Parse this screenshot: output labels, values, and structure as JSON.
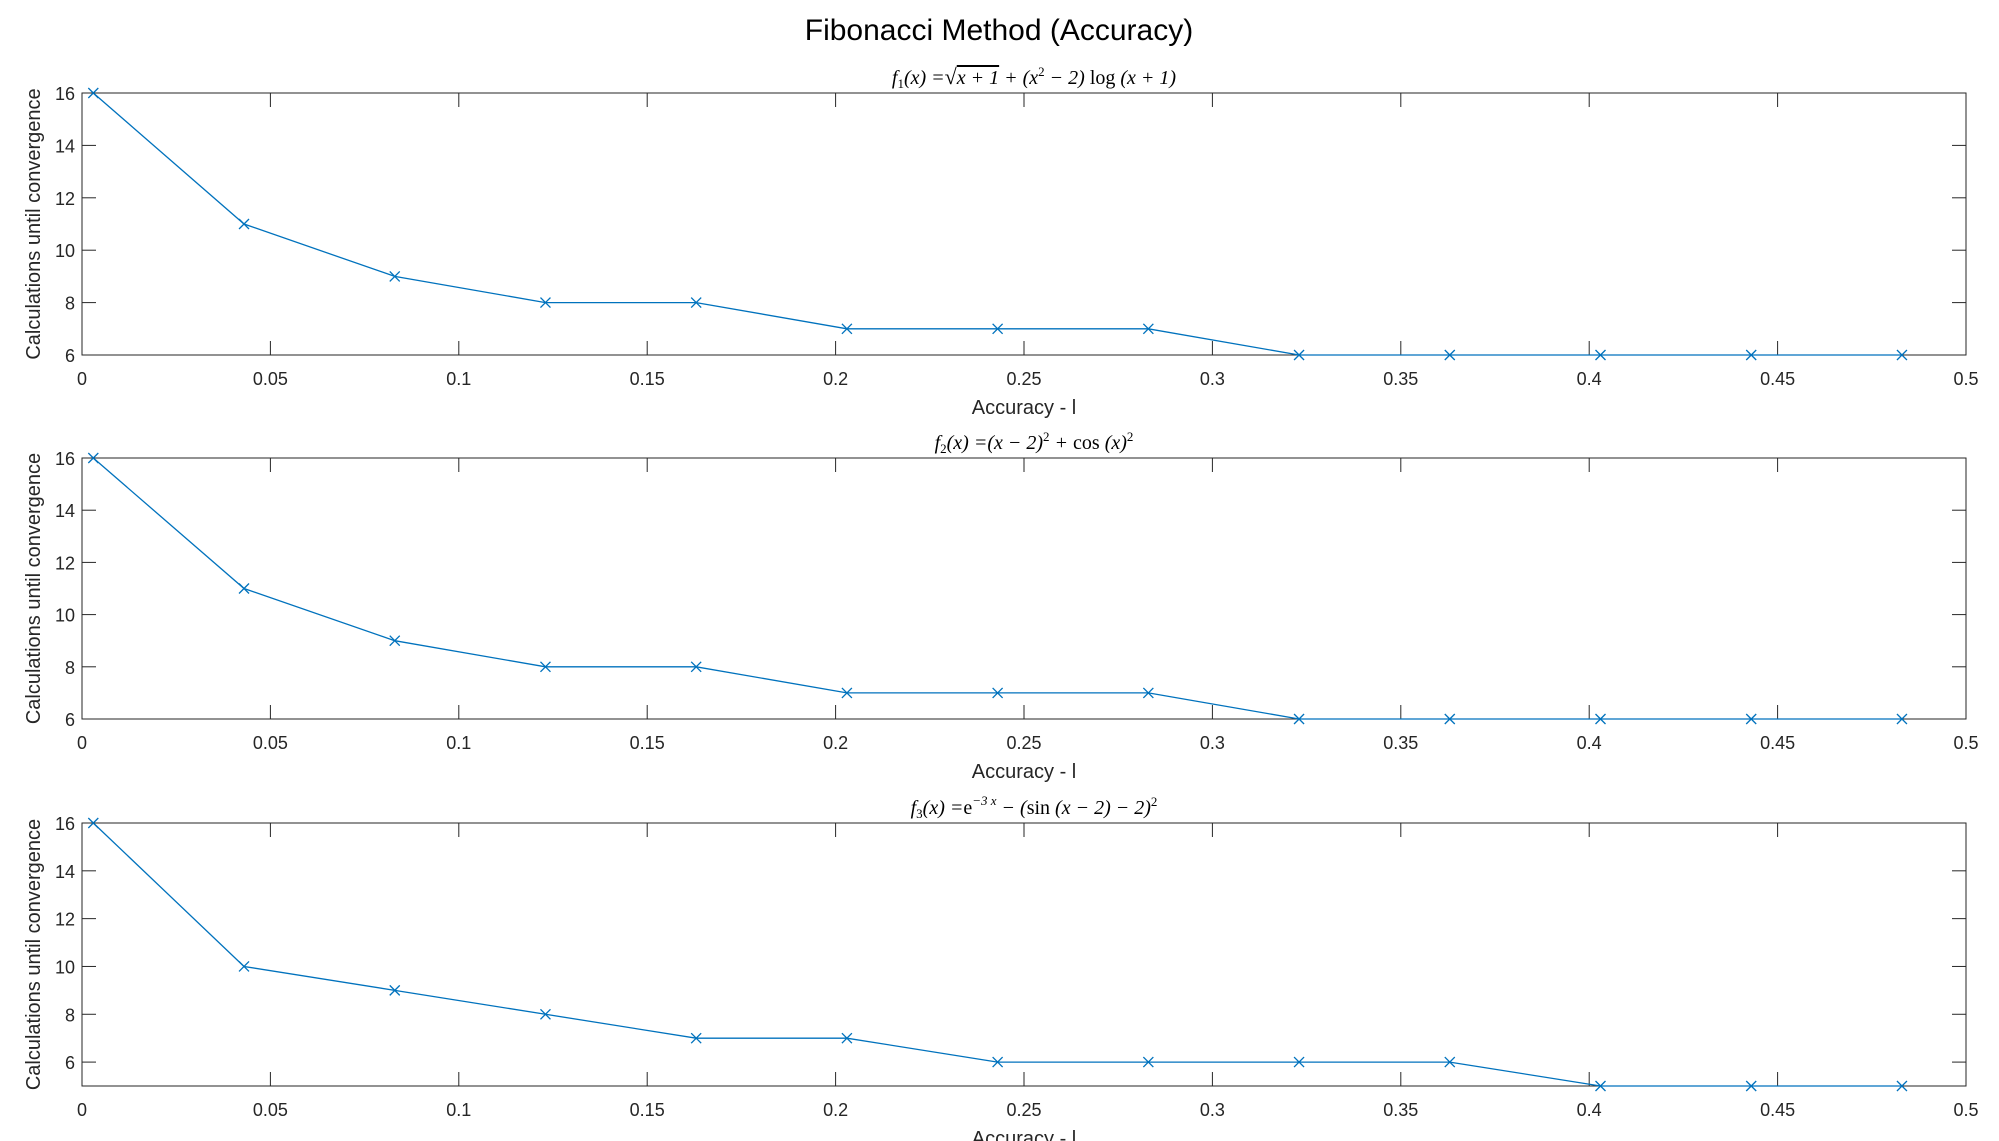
{
  "figure_title": "Fibonacci Method (Accuracy)",
  "chart_data": [
    {
      "type": "line",
      "title": "f1(x) = √(x+1) + (x² − 2) log(x+1)",
      "xlabel": "Accuracy - l",
      "ylabel": "Calculations until convergence",
      "xlim": [
        0,
        0.5
      ],
      "ylim": [
        6,
        16
      ],
      "xticks": [
        0,
        0.05,
        0.1,
        0.15,
        0.2,
        0.25,
        0.3,
        0.35,
        0.4,
        0.45,
        0.5
      ],
      "yticks": [
        6,
        8,
        10,
        12,
        14,
        16
      ],
      "marker": "x",
      "color": "#0072BD",
      "grid": false,
      "x": [
        0.003,
        0.043,
        0.083,
        0.123,
        0.163,
        0.203,
        0.243,
        0.283,
        0.323,
        0.363,
        0.403,
        0.443,
        0.483
      ],
      "y": [
        16,
        11,
        9,
        8,
        8,
        7,
        7,
        7,
        6,
        6,
        6,
        6,
        6
      ]
    },
    {
      "type": "line",
      "title": "f2(x) = (x − 2)² + cos(x)²",
      "xlabel": "Accuracy - l",
      "ylabel": "Calculations until convergence",
      "xlim": [
        0,
        0.5
      ],
      "ylim": [
        6,
        16
      ],
      "xticks": [
        0,
        0.05,
        0.1,
        0.15,
        0.2,
        0.25,
        0.3,
        0.35,
        0.4,
        0.45,
        0.5
      ],
      "yticks": [
        6,
        8,
        10,
        12,
        14,
        16
      ],
      "marker": "x",
      "color": "#0072BD",
      "grid": false,
      "x": [
        0.003,
        0.043,
        0.083,
        0.123,
        0.163,
        0.203,
        0.243,
        0.283,
        0.323,
        0.363,
        0.403,
        0.443,
        0.483
      ],
      "y": [
        16,
        11,
        9,
        8,
        8,
        7,
        7,
        7,
        6,
        6,
        6,
        6,
        6
      ]
    },
    {
      "type": "line",
      "title": "f3(x) = e^(−3x) − (sin(x − 2) − 2)²",
      "xlabel": "Accuracy - l",
      "ylabel": "Calculations until convergence",
      "xlim": [
        0,
        0.5
      ],
      "ylim": [
        5,
        16
      ],
      "xticks": [
        0,
        0.05,
        0.1,
        0.15,
        0.2,
        0.25,
        0.3,
        0.35,
        0.4,
        0.45,
        0.5
      ],
      "yticks": [
        6,
        8,
        10,
        12,
        14,
        16
      ],
      "marker": "x",
      "color": "#0072BD",
      "grid": false,
      "x": [
        0.003,
        0.043,
        0.083,
        0.123,
        0.163,
        0.203,
        0.243,
        0.283,
        0.323,
        0.363,
        0.403,
        0.443,
        0.483
      ],
      "y": [
        16,
        10,
        9,
        8,
        7,
        7,
        6,
        6,
        6,
        6,
        5,
        5,
        5
      ]
    }
  ]
}
